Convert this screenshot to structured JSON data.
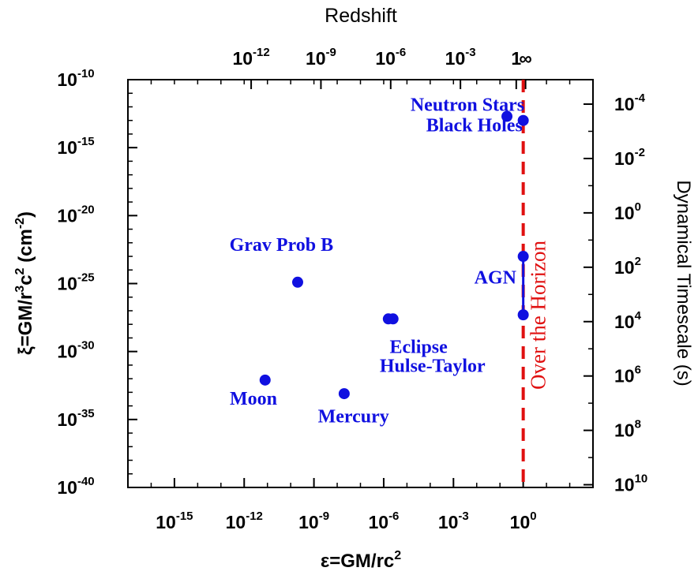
{
  "chart_data": {
    "type": "scatter",
    "xlabel": "ε=GM/rc",
    "xlabel_sup": "2",
    "ylabel_parts": [
      "ξ=GM/r",
      "3",
      "c",
      "2",
      " (cm",
      "-2",
      ")"
    ],
    "top_axis_title": "Redshift",
    "right_axis_title": "Dynamical Timescale (s)",
    "x_scale": "log",
    "y_scale": "log",
    "xlim_exp": [
      -17,
      3
    ],
    "ylim_exp": [
      -40,
      -10
    ],
    "x_ticks": [
      {
        "base": "10",
        "exp": "-15",
        "value_exp": -15
      },
      {
        "base": "10",
        "exp": "-12",
        "value_exp": -12
      },
      {
        "base": "10",
        "exp": "-9",
        "value_exp": -9
      },
      {
        "base": "10",
        "exp": "-6",
        "value_exp": -6
      },
      {
        "base": "10",
        "exp": "-3",
        "value_exp": -3
      },
      {
        "base": "10",
        "exp": "0",
        "value_exp": 0
      }
    ],
    "y_ticks": [
      {
        "base": "10",
        "exp": "-10",
        "value_exp": -10
      },
      {
        "base": "10",
        "exp": "-15",
        "value_exp": -15
      },
      {
        "base": "10",
        "exp": "-20",
        "value_exp": -20
      },
      {
        "base": "10",
        "exp": "-25",
        "value_exp": -25
      },
      {
        "base": "10",
        "exp": "-30",
        "value_exp": -30
      },
      {
        "base": "10",
        "exp": "-35",
        "value_exp": -35
      },
      {
        "base": "10",
        "exp": "-40",
        "value_exp": -40
      }
    ],
    "top_ticks": [
      {
        "base": "10",
        "exp": "-12",
        "at_x_exp": -11.7
      },
      {
        "base": "10",
        "exp": "-9",
        "at_x_exp": -8.7
      },
      {
        "base": "10",
        "exp": "-6",
        "at_x_exp": -5.7
      },
      {
        "base": "10",
        "exp": "-3",
        "at_x_exp": -2.7
      },
      {
        "base": "1",
        "exp": "",
        "at_x_exp": -0.3
      },
      {
        "base": "∞",
        "exp": "",
        "at_x_exp": 0.1
      }
    ],
    "right_ticks": [
      {
        "base": "10",
        "exp": "-4",
        "at_y_exp": -11.8
      },
      {
        "base": "10",
        "exp": "-2",
        "at_y_exp": -15.8
      },
      {
        "base": "10",
        "exp": "0",
        "at_y_exp": -19.8
      },
      {
        "base": "10",
        "exp": "2",
        "at_y_exp": -23.8
      },
      {
        "base": "10",
        "exp": "4",
        "at_y_exp": -27.8
      },
      {
        "base": "10",
        "exp": "6",
        "at_y_exp": -31.8
      },
      {
        "base": "10",
        "exp": "8",
        "at_y_exp": -35.8
      },
      {
        "base": "10",
        "exp": "10",
        "at_y_exp": -39.8
      }
    ],
    "points": [
      {
        "x_exp": -11.1,
        "y_exp": -32.1
      },
      {
        "x_exp": -9.7,
        "y_exp": -24.9
      },
      {
        "x_exp": -7.7,
        "y_exp": -33.1
      },
      {
        "x_exp": -5.8,
        "y_exp": -27.6
      },
      {
        "x_exp": -5.6,
        "y_exp": -27.6
      },
      {
        "x_exp": -0.7,
        "y_exp": -12.7
      },
      {
        "x_exp": 0.0,
        "y_exp": -13.0
      },
      {
        "x_exp": 0.0,
        "y_exp": -23.0
      },
      {
        "x_exp": 0.0,
        "y_exp": -27.3
      }
    ],
    "agn_range_y_exp": [
      -23.0,
      -27.3
    ],
    "horizon_x_exp": 0.0,
    "annotations": [
      {
        "text": "Neutron Stars",
        "x_exp": -2.4,
        "y_exp": -12.3
      },
      {
        "text": "Black Holes",
        "x_exp": -2.1,
        "y_exp": -13.8
      },
      {
        "text": "Grav Prob B",
        "x_exp": -10.4,
        "y_exp": -22.6
      },
      {
        "text": "AGN",
        "x_exp": -1.2,
        "y_exp": -25.0
      },
      {
        "text": "Eclipse",
        "x_exp": -4.5,
        "y_exp": -30.1
      },
      {
        "text": "Hulse-Taylor",
        "x_exp": -3.9,
        "y_exp": -31.5
      },
      {
        "text": "Moon",
        "x_exp": -11.6,
        "y_exp": -33.9
      },
      {
        "text": "Mercury",
        "x_exp": -7.3,
        "y_exp": -35.2
      }
    ],
    "horizon_label": "Over the Horizon",
    "colors": {
      "points": "#1010e0",
      "horizon": "#e01010",
      "axes": "#000000"
    }
  }
}
